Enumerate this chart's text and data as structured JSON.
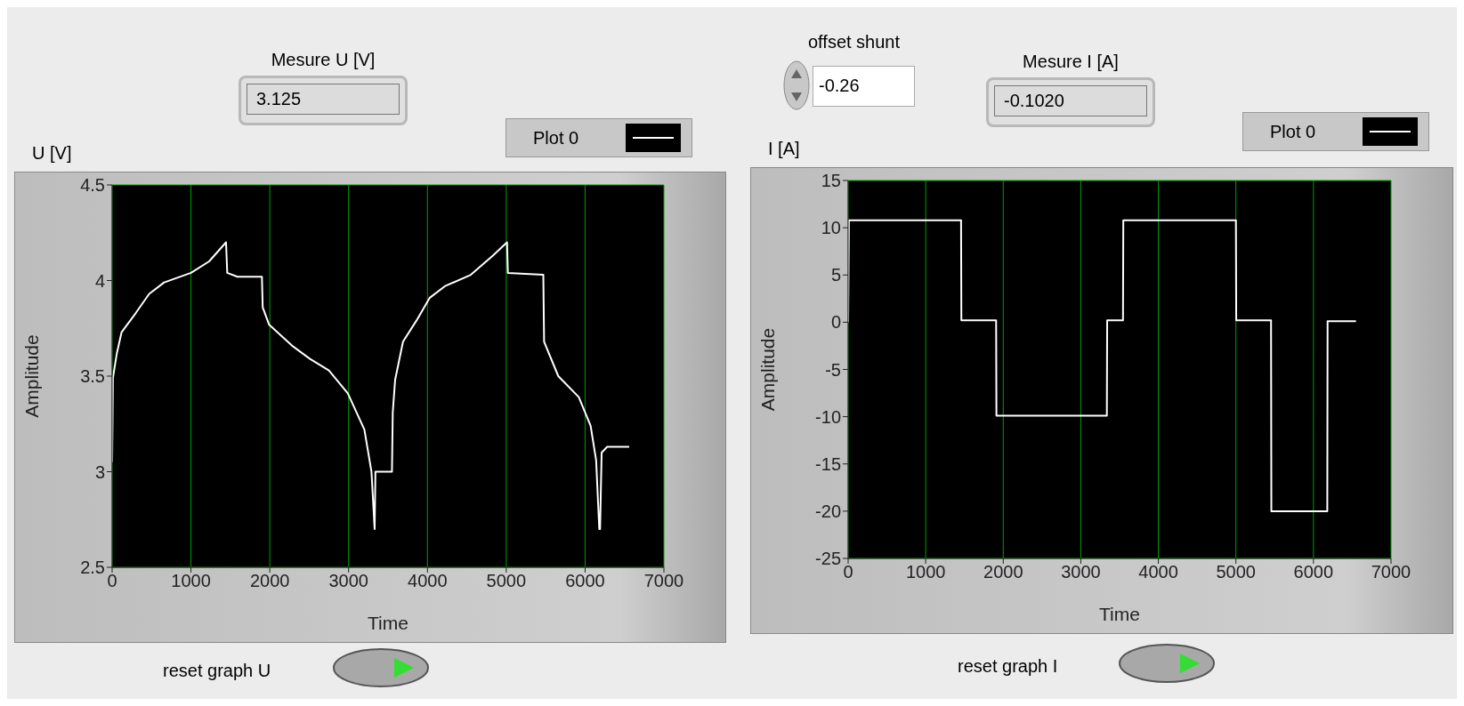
{
  "chart_data": [
    {
      "type": "line",
      "title": "U [V]",
      "xlabel": "Time",
      "ylabel": "Amplitude",
      "xlim": [
        0,
        7000
      ],
      "xticks": [
        0,
        1000,
        2000,
        3000,
        4000,
        5000,
        6000,
        7000
      ],
      "ylim": [
        2.5,
        4.5
      ],
      "yticks": [
        2.5,
        3,
        3.5,
        4,
        4.5
      ],
      "grid": true,
      "legend": "top right",
      "marker": "none",
      "line_style": "solid",
      "annotations": [
        "Mesure U [V]",
        "3.125",
        "reset graph U"
      ],
      "series": [
        {
          "name": "Plot 0",
          "color": "#ffffff",
          "x": [
            0,
            10,
            60,
            120,
            300,
            470,
            660,
            1000,
            1230,
            1445,
            1460,
            1590,
            1900,
            1910,
            1990,
            2280,
            2510,
            2750,
            2990,
            3200,
            3290,
            3330,
            3340,
            3365,
            3550,
            3560,
            3590,
            3690,
            3860,
            4030,
            4220,
            4550,
            4830,
            5010,
            5020,
            5470,
            5480,
            5660,
            5920,
            6070,
            6140,
            6180,
            6190,
            6210,
            6280,
            6560
          ],
          "values": [
            3.05,
            3.49,
            3.62,
            3.73,
            3.83,
            3.93,
            3.99,
            4.04,
            4.1,
            4.2,
            4.04,
            4.02,
            4.02,
            3.86,
            3.77,
            3.66,
            3.59,
            3.53,
            3.41,
            3.22,
            3.0,
            2.7,
            3.0,
            3.0,
            3.0,
            3.31,
            3.48,
            3.68,
            3.79,
            3.91,
            3.97,
            4.03,
            4.13,
            4.2,
            4.04,
            4.03,
            3.68,
            3.5,
            3.39,
            3.24,
            3.06,
            2.7,
            2.7,
            3.1,
            3.13,
            3.13
          ]
        }
      ]
    },
    {
      "type": "line",
      "title": "I [A]",
      "xlabel": "Time",
      "ylabel": "Amplitude",
      "xlim": [
        0,
        7000
      ],
      "xticks": [
        0,
        1000,
        2000,
        3000,
        4000,
        5000,
        6000,
        7000
      ],
      "ylim": [
        -25,
        15
      ],
      "yticks": [
        -25,
        -20,
        -15,
        -10,
        -5,
        0,
        5,
        10,
        15
      ],
      "grid": true,
      "legend": "top right",
      "marker": "none",
      "line_style": "solid",
      "annotations": [
        "offset shunt",
        "-0.26",
        "Mesure I [A]",
        "-0.1020",
        "reset graph I"
      ],
      "series": [
        {
          "name": "Plot 0",
          "color": "#ffffff",
          "x": [
            0,
            10,
            1456,
            1460,
            1908,
            1912,
            3336,
            3340,
            3544,
            3548,
            5000,
            5004,
            5453,
            5457,
            6178,
            6182,
            6548
          ],
          "values": [
            0,
            10.8,
            10.8,
            0.2,
            0.2,
            -9.9,
            -9.9,
            0.2,
            0.2,
            10.8,
            10.8,
            0.2,
            0.2,
            -20,
            -20,
            0.1,
            0.1
          ]
        }
      ]
    }
  ]
}
